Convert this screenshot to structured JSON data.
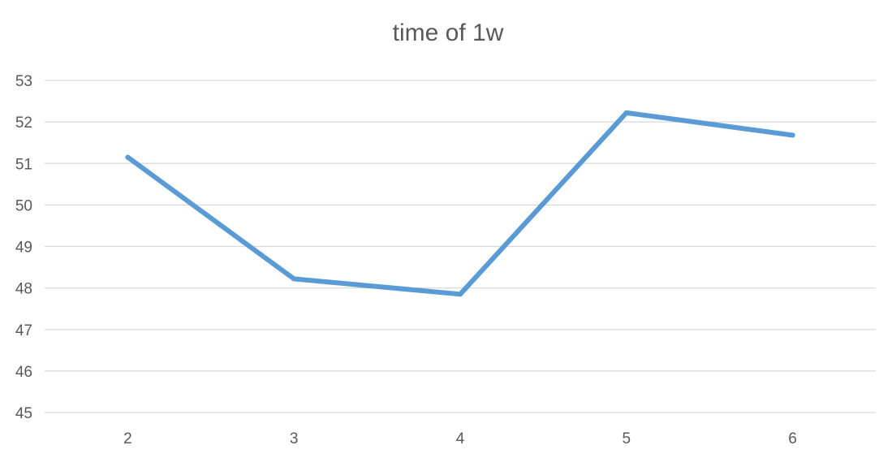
{
  "chart_data": {
    "type": "line",
    "title": "time of 1w",
    "xlabel": "",
    "ylabel": "",
    "categories": [
      "2",
      "3",
      "4",
      "5",
      "6"
    ],
    "series": [
      {
        "values": [
          51.15,
          48.22,
          47.85,
          52.22,
          51.68
        ]
      }
    ],
    "ylim": [
      45,
      53
    ],
    "yticks": [
      45,
      46,
      47,
      48,
      49,
      50,
      51,
      52,
      53
    ],
    "grid": true,
    "legend": "none",
    "colors": {
      "series": "#5b9bd5",
      "grid": "#d9d9d9",
      "text": "#595959"
    }
  }
}
